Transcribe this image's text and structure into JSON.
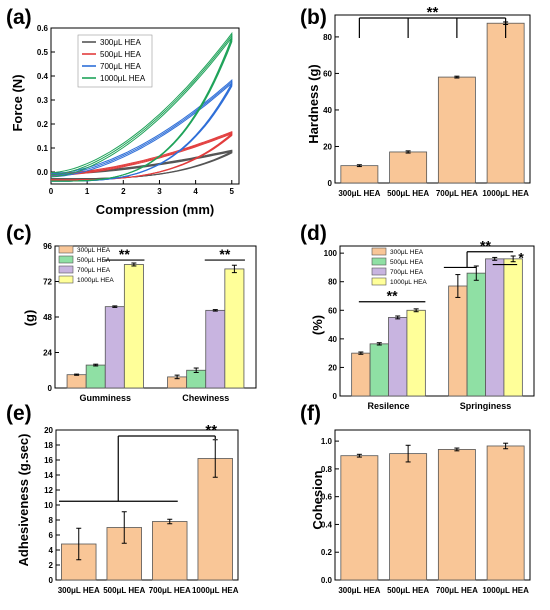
{
  "chart_data": [
    {
      "panel": "(a)",
      "type": "line",
      "xlabel": "Compression (mm)",
      "ylabel": "Force (N)",
      "xlim": [
        0,
        5.2
      ],
      "ylim": [
        -0.05,
        0.6
      ],
      "xticks": [
        0,
        1,
        2,
        3,
        4,
        5
      ],
      "yticks": [
        0.0,
        0.1,
        0.2,
        0.3,
        0.4,
        0.5,
        0.6
      ],
      "legend_position": "top-center",
      "series": [
        {
          "name": "300μL HEA",
          "color": "#555555",
          "peak": 0.085,
          "base": -0.01,
          "x": [
            0,
            1,
            2,
            3,
            4,
            4.6,
            5
          ],
          "loading": [
            -0.01,
            0.0,
            0.01,
            0.02,
            0.04,
            0.06,
            0.085
          ],
          "unloading": [
            -0.03,
            -0.025,
            -0.02,
            -0.01,
            0.02,
            0.05,
            0.085
          ]
        },
        {
          "name": "500μL HEA",
          "color": "#e23d3d",
          "peak": 0.16,
          "base": -0.015,
          "x": [
            0,
            1,
            2,
            3,
            4,
            4.6,
            5
          ],
          "loading": [
            -0.015,
            0.0,
            0.02,
            0.05,
            0.09,
            0.12,
            0.16
          ],
          "unloading": [
            -0.035,
            -0.03,
            -0.02,
            0.0,
            0.03,
            0.08,
            0.16
          ]
        },
        {
          "name": "700μL HEA",
          "color": "#2f6fd8",
          "peak": 0.37,
          "base": -0.02,
          "x": [
            0,
            1,
            2,
            3,
            4,
            4.6,
            5
          ],
          "loading": [
            -0.02,
            0.02,
            0.07,
            0.15,
            0.26,
            0.32,
            0.37
          ],
          "unloading": [
            -0.03,
            -0.02,
            0.01,
            0.06,
            0.14,
            0.24,
            0.37
          ]
        },
        {
          "name": "1000μL HEA",
          "color": "#1fa35a",
          "peak": 0.56,
          "base": -0.02,
          "x": [
            0,
            1,
            2,
            3,
            4,
            4.6,
            5
          ],
          "loading": [
            -0.02,
            0.03,
            0.1,
            0.22,
            0.38,
            0.47,
            0.56
          ],
          "unloading": [
            -0.03,
            -0.01,
            0.02,
            0.08,
            0.2,
            0.36,
            0.56
          ]
        }
      ]
    },
    {
      "panel": "(b)",
      "type": "bar",
      "ylabel": "Hardness (g)",
      "ylim": [
        0,
        92
      ],
      "yticks": [
        0,
        20,
        40,
        60,
        80
      ],
      "categories": [
        "300μL HEA",
        "500μL HEA",
        "700μL HEA",
        "1000μL HEA"
      ],
      "values": [
        9.5,
        17.0,
        58.0,
        87.5
      ],
      "errors": [
        0.5,
        0.6,
        0.5,
        0.7
      ],
      "color": "#f9c697",
      "annotation": "**"
    },
    {
      "panel": "(c)",
      "type": "bar",
      "ylabel": "(g)",
      "ylim": [
        0,
        96
      ],
      "yticks": [
        0,
        24,
        48,
        72,
        96
      ],
      "categories": [
        "Gumminess",
        "Chewiness"
      ],
      "legend_position": "top-left",
      "series": [
        {
          "name": "300μL HEA",
          "color": "#f9c697",
          "values": [
            9.0,
            7.5
          ],
          "errors": [
            0.4,
            1.2
          ]
        },
        {
          "name": "500μL HEA",
          "color": "#8fe0a4",
          "values": [
            15.5,
            12.0
          ],
          "errors": [
            0.6,
            1.5
          ]
        },
        {
          "name": "700μL HEA",
          "color": "#c8b4e0",
          "values": [
            55.0,
            52.5
          ],
          "errors": [
            0.5,
            0.5
          ]
        },
        {
          "name": "1000μL HEA",
          "color": "#ffff99",
          "values": [
            83.5,
            80.5
          ],
          "errors": [
            1.0,
            2.5
          ]
        }
      ],
      "annotations": [
        "**",
        "**"
      ]
    },
    {
      "panel": "(d)",
      "type": "bar",
      "ylabel": "(%)",
      "ylim": [
        0,
        105
      ],
      "yticks": [
        0,
        20,
        40,
        60,
        80,
        100
      ],
      "categories": [
        "Resilence",
        "Springiness"
      ],
      "legend_position": "top-left",
      "series": [
        {
          "name": "300μL HEA",
          "color": "#f9c697",
          "values": [
            30.0,
            77.0
          ],
          "errors": [
            0.8,
            8.0
          ]
        },
        {
          "name": "500μL HEA",
          "color": "#8fe0a4",
          "values": [
            36.5,
            86.0
          ],
          "errors": [
            0.8,
            5.0
          ]
        },
        {
          "name": "700μL HEA",
          "color": "#c8b4e0",
          "values": [
            55.0,
            96.0
          ],
          "errors": [
            1.0,
            1.0
          ]
        },
        {
          "name": "1000μL HEA",
          "color": "#ffff99",
          "values": [
            60.0,
            96.0
          ],
          "errors": [
            1.0,
            2.0
          ]
        }
      ],
      "annotations": [
        "**",
        "**",
        "*"
      ]
    },
    {
      "panel": "(e)",
      "type": "bar",
      "ylabel": "Adhesiveness (g.sec)",
      "ylim": [
        0,
        20
      ],
      "yticks": [
        0,
        2,
        4,
        6,
        8,
        10,
        12,
        14,
        16,
        18,
        20
      ],
      "categories": [
        "300μL HEA",
        "500μL HEA",
        "700μL HEA",
        "1000μL HEA"
      ],
      "values": [
        4.8,
        7.0,
        7.8,
        16.2
      ],
      "errors": [
        2.1,
        2.1,
        0.3,
        2.5
      ],
      "color": "#f9c697",
      "annotation": "**"
    },
    {
      "panel": "(f)",
      "type": "bar",
      "ylabel": "Cohesion",
      "ylim": [
        0,
        1.08
      ],
      "yticks": [
        0.0,
        0.2,
        0.4,
        0.6,
        0.8,
        1.0
      ],
      "categories": [
        "300μL HEA",
        "500μL HEA",
        "700μL HEA",
        "1000μL HEA"
      ],
      "values": [
        0.895,
        0.91,
        0.94,
        0.965
      ],
      "errors": [
        0.01,
        0.06,
        0.01,
        0.02
      ],
      "color": "#f9c697"
    }
  ]
}
